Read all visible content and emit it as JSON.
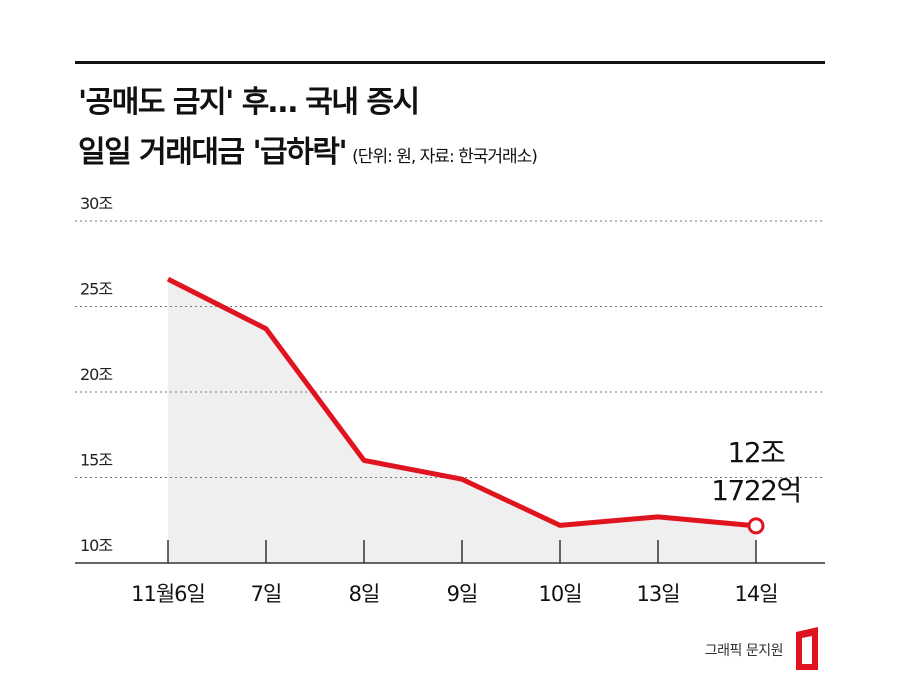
{
  "chart_data": {
    "type": "line",
    "title": [
      "'공매도 금지' 후… 국내 증시",
      "일일 거래대금 '급하락'"
    ],
    "subtitle": "(단위: 원, 자료: 한국거래소)",
    "categories": [
      "11월6일",
      "7일",
      "8일",
      "9일",
      "10일",
      "13일",
      "14일"
    ],
    "values": [
      26.6,
      23.7,
      16.0,
      14.9,
      12.2,
      12.7,
      12.1722
    ],
    "value_labels": [
      null,
      null,
      null,
      null,
      null,
      null,
      [
        "12조",
        "1722억"
      ]
    ],
    "color": "#e0141e",
    "area_color": "#efefef",
    "ylim": [
      10,
      30
    ],
    "yticks": [
      {
        "value": 10,
        "label": "10조"
      },
      {
        "value": 15,
        "label": "15조"
      },
      {
        "value": 20,
        "label": "20조"
      },
      {
        "value": 25,
        "label": "25조"
      },
      {
        "value": 30,
        "label": "30조"
      }
    ],
    "grid": true,
    "credit": "그래픽 문지원"
  }
}
